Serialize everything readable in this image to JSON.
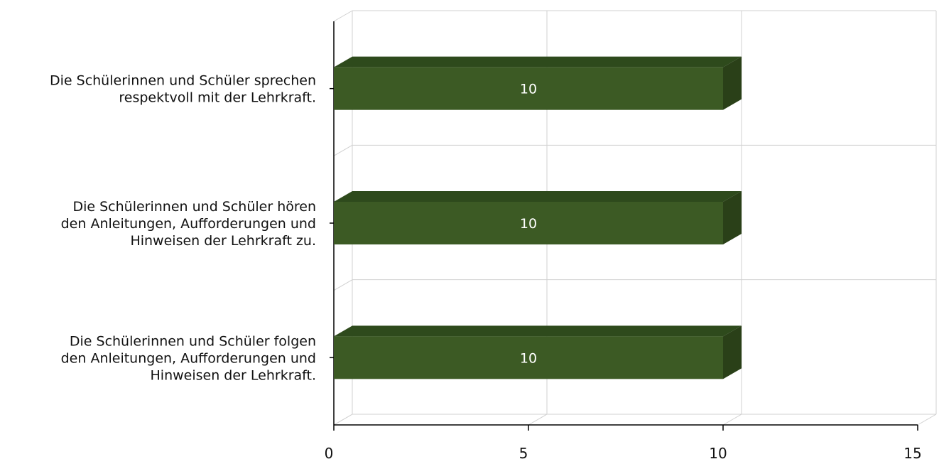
{
  "chart_data": {
    "type": "bar",
    "orientation": "horizontal",
    "style": "3d",
    "categories": [
      "Die Schülerinnen und Schüler sprechen respektvoll mit der Lehrkraft.",
      "Die Schülerinnen und Schüler hören den Anleitungen, Aufforderungen und Hinweisen der Lehrkraft zu.",
      "Die Schülerinnen und Schüler folgen den Anleitungen, Aufforderungen und Hinweisen der Lehrkraft."
    ],
    "category_label_lines": [
      [
        "Die Schülerinnen und Schüler sprechen",
        "respektvoll mit der Lehrkraft."
      ],
      [
        "Die Schülerinnen und Schüler hören",
        "den Anleitungen, Aufforderungen und",
        "Hinweisen der Lehrkraft zu."
      ],
      [
        "Die Schülerinnen und Schüler folgen",
        "den Anleitungen, Aufforderungen und",
        "Hinweisen der Lehrkraft."
      ]
    ],
    "values": [
      10,
      10,
      10
    ],
    "data_labels": [
      "10",
      "10",
      "10"
    ],
    "xlim": [
      0,
      15
    ],
    "x_ticks": [
      0,
      5,
      10,
      15
    ],
    "x_tick_labels": [
      "0",
      "5",
      "10",
      "15"
    ],
    "title": "",
    "xlabel": "",
    "ylabel": "",
    "grid": true,
    "legend": "none",
    "colors": {
      "bar_front": "#3c5a24",
      "bar_top": "#2e4a1c",
      "bar_side": "#2a4018",
      "data_label": "#ffffff",
      "grid": "#d0d0d0",
      "axis": "#000000"
    }
  }
}
